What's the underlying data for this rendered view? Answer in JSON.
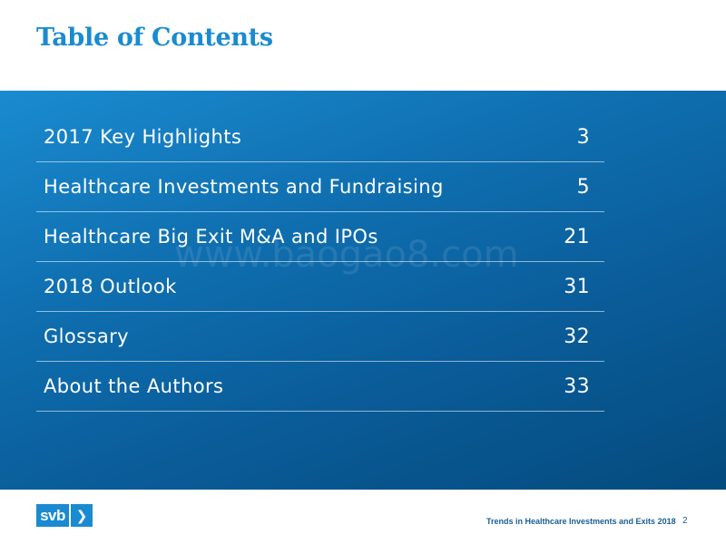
{
  "title": "Table of Contents",
  "toc": [
    {
      "label": "2017 Key Highlights",
      "page": "3"
    },
    {
      "label": "Healthcare Investments and Fundraising",
      "page": "5"
    },
    {
      "label": "Healthcare Big Exit M&A and IPOs",
      "page": "21"
    },
    {
      "label": "2018 Outlook",
      "page": "31"
    },
    {
      "label": "Glossary",
      "page": "32"
    },
    {
      "label": "About the Authors",
      "page": "33"
    }
  ],
  "watermark": "www.baogao8.com",
  "footer": {
    "logo_text": "svb",
    "logo_arrow": "❯",
    "report_title": "Trends in Healthcare Investments and Exits 2018",
    "page_number": "2"
  },
  "colors": {
    "accent": "#1a8bd0",
    "panel_dark": "#044b7e"
  },
  "icons": {
    "logo_arrow": "chevron-right-icon"
  }
}
